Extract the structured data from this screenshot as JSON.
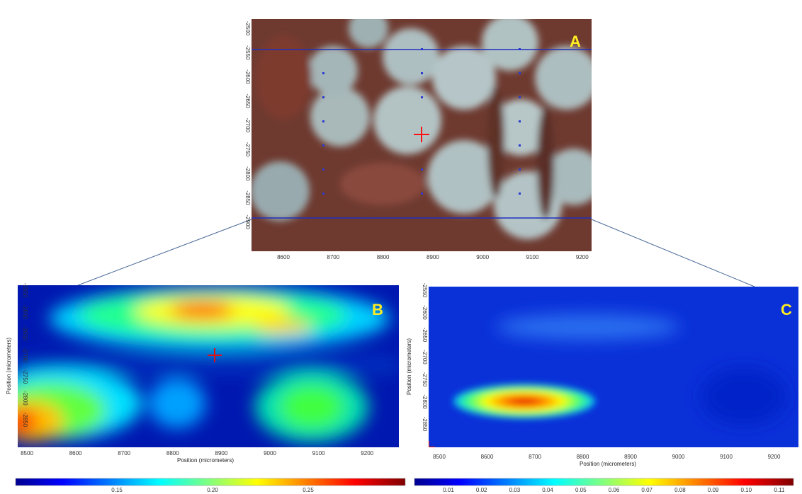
{
  "panels": [
    {
      "label": "A",
      "x_ticks": [
        "8600",
        "8700",
        "8800",
        "8900",
        "9000",
        "9100",
        "9200"
      ],
      "y_ticks": [
        "-2500",
        "-2550",
        "-2600",
        "-2650",
        "-2700",
        "-2750",
        "-2800",
        "-2850",
        "-2900"
      ]
    },
    {
      "label": "B",
      "x_label": "Position (micrometers)",
      "y_label": "Position (micrometers)",
      "x_ticks": [
        "8500",
        "8600",
        "8700",
        "8800",
        "8900",
        "9000",
        "9100",
        "9200"
      ],
      "y_ticks": [
        "-2550",
        "-2600",
        "-2650",
        "-2700",
        "-2750",
        "-2800",
        "-2850"
      ],
      "colorbar_ticks": [
        "0.15",
        "0.20",
        "0.25"
      ]
    },
    {
      "label": "C",
      "x_label": "Position (micrometers)",
      "y_label": "Position (micrometers)",
      "x_ticks": [
        "8500",
        "8600",
        "8700",
        "8800",
        "8900",
        "9000",
        "9100",
        "9200"
      ],
      "y_ticks": [
        "-2550",
        "-2600",
        "-2650",
        "-2700",
        "-2750",
        "-2800",
        "-2850"
      ],
      "colorbar_ticks": [
        "0.01",
        "0.02",
        "0.03",
        "0.04",
        "0.05",
        "0.06",
        "0.07",
        "0.08",
        "0.09",
        "0.10",
        "0.11"
      ]
    }
  ]
}
